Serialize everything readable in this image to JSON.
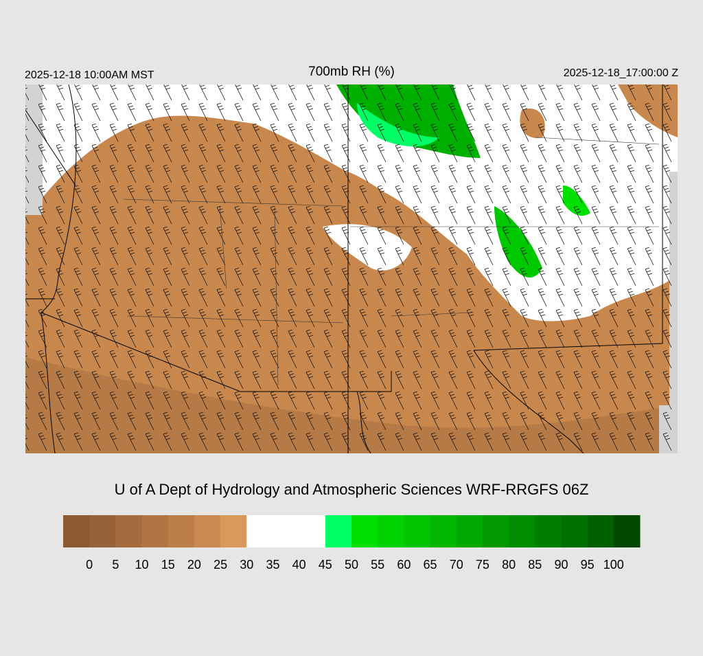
{
  "header": {
    "valid_local": "2025-12-18 10:00AM MST",
    "title": "700mb RH (%)",
    "valid_utc": "2025-12-18_17:00:00 Z"
  },
  "credit": "U of A Dept of Hydrology and Atmospheric Sciences WRF-RRGFS 06Z",
  "colorbar": {
    "colors": [
      "#8b5a33",
      "#976238",
      "#a36b3e",
      "#b07544",
      "#bd7f4a",
      "#ca8a51",
      "#d89a5c",
      "#ffffff",
      "#ffffff",
      "#ffffff",
      "#00ff66",
      "#00e000",
      "#00d200",
      "#00c400",
      "#00b600",
      "#00a800",
      "#009a00",
      "#008c00",
      "#007e00",
      "#007000",
      "#006000",
      "#004800"
    ],
    "labels": [
      0,
      5,
      10,
      15,
      20,
      25,
      30,
      35,
      40,
      45,
      50,
      55,
      60,
      65,
      70,
      75,
      80,
      85,
      90,
      95,
      100
    ]
  }
}
